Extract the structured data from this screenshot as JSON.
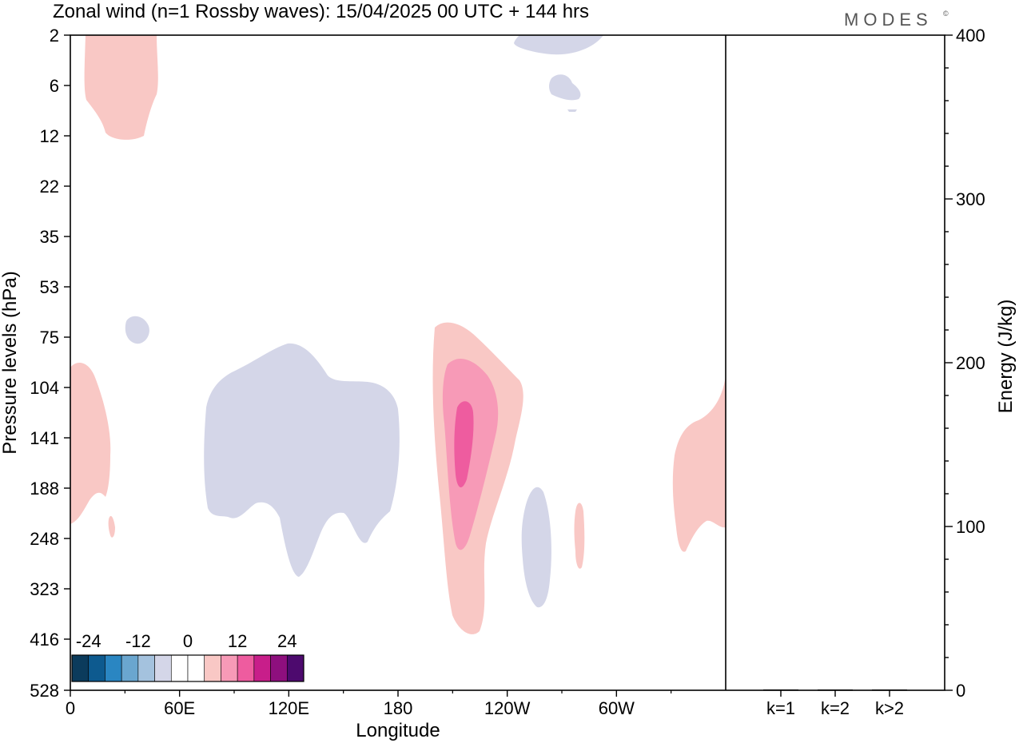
{
  "title": "Zonal wind (n=1 Rossby waves):  15/04/2025  00 UTC  + 144 hrs",
  "logo": "MODES",
  "logo_mark": "©",
  "colors": {
    "neg1": "#d4d6e8",
    "pos1": "#f9c8c5",
    "pos2": "#f79ab7",
    "pos3": "#ee5c9f",
    "colorbar": [
      "#0b3b5c",
      "#0d5a8f",
      "#2a86c2",
      "#6aa6cf",
      "#a4c2de",
      "#d4d6e8",
      "#ffffff",
      "#ffffff",
      "#f9c8c5",
      "#f79ab7",
      "#ee5c9f",
      "#c81e8a",
      "#8e0f7e",
      "#4d0a6e"
    ]
  },
  "chart_data": [
    {
      "type": "heatmap",
      "description_field": "zonal wind contours",
      "xlabel": "Longitude",
      "ylabel": "Pressure levels (hPa)",
      "x_ticks": [
        "0",
        "60E",
        "120E",
        "180",
        "120W",
        "60W"
      ],
      "x_tick_values": [
        0,
        60,
        120,
        180,
        240,
        300
      ],
      "xlim": [
        0,
        360
      ],
      "y_ticks": [
        "2",
        "6",
        "12",
        "22",
        "35",
        "53",
        "75",
        "104",
        "141",
        "188",
        "248",
        "323",
        "416",
        "528"
      ],
      "colorbar_labels": [
        "-24",
        "-12",
        "0",
        "12",
        "24"
      ],
      "colorbar_levels": [
        -28,
        -24,
        -20,
        -16,
        -12,
        -8,
        -4,
        0,
        4,
        8,
        12,
        16,
        20,
        24,
        28
      ]
    },
    {
      "type": "bar",
      "categories": [
        "k=1",
        "k=2",
        "k>2"
      ],
      "values": [
        0.5,
        0.4,
        0.2
      ],
      "ylabel": "Energy (J/kg)",
      "ylim": [
        0,
        400
      ],
      "y_ticks": [
        "0",
        "100",
        "200",
        "300",
        "400"
      ]
    }
  ]
}
